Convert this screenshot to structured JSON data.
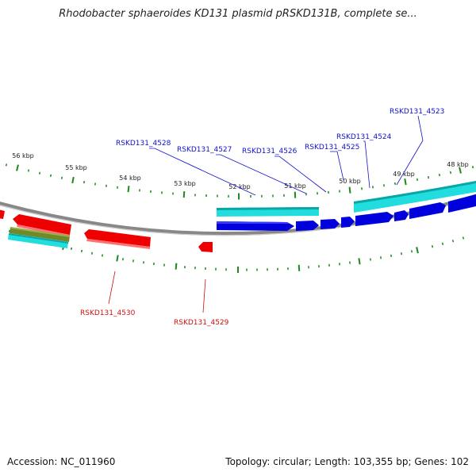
{
  "header": {
    "title": "Rhodobacter sphaeroides KD131 plasmid pRSKD131B, complete se..."
  },
  "footer": {
    "accession": "Accession: NC_011960",
    "topology": "Topology: circular; Length: 103,355 bp; Genes: 102"
  },
  "colors": {
    "backbone": "#888888",
    "tick": "#1a8a1a",
    "forward_gene": "#0000dd",
    "reverse_gene": "#ee0000",
    "cds_light": "#22dddd",
    "other_feature": "#6f8a2a",
    "label_forward": "#1010cc",
    "label_reverse": "#cc1010"
  },
  "kbp_labels": [
    "56 kbp",
    "55 kbp",
    "54 kbp",
    "53 kbp",
    "52 kbp",
    "51 kbp",
    "50 kbp",
    "49 kbp",
    "48 kbp"
  ],
  "gene_labels_top": [
    "RSKD131_4528",
    "RSKD131_4527",
    "RSKD131_4526",
    "RSKD131_4525",
    "RSKD131_4524",
    "RSKD131_4523"
  ],
  "gene_labels_bottom": [
    "RSKD131_4530",
    "RSKD131_4529"
  ]
}
